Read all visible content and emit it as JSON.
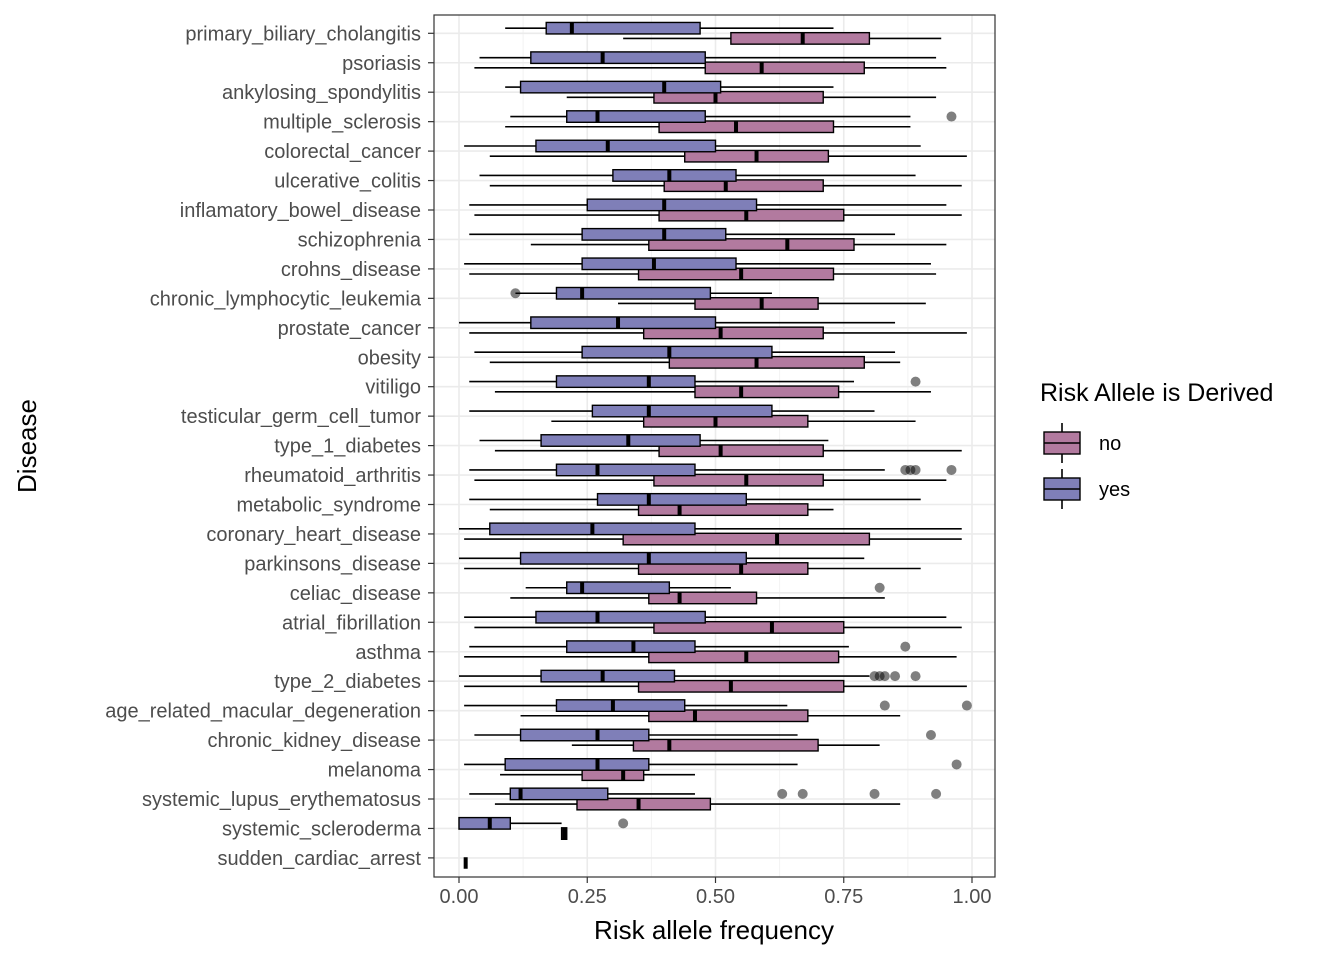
{
  "chart_data": {
    "type": "boxplot",
    "orientation": "horizontal",
    "xlabel": "Risk allele frequency",
    "ylabel": "Disease",
    "xlim": [
      -0.05,
      1.04
    ],
    "xticks": [
      0,
      0.25,
      0.5,
      0.75,
      1
    ],
    "xtick_labels": [
      "0.00",
      "0.25",
      "0.50",
      "0.75",
      "1.00"
    ],
    "grid": true,
    "legend": {
      "title": "Risk Allele is Derived",
      "placement": "right",
      "entries": [
        {
          "key": "no",
          "label": "no",
          "color": "#B27A9F"
        },
        {
          "key": "yes",
          "label": "yes",
          "color": "#7F7FB8"
        }
      ]
    },
    "categories": [
      "primary_biliary_cholangitis",
      "psoriasis",
      "ankylosing_spondylitis",
      "multiple_sclerosis",
      "colorectal_cancer",
      "ulcerative_colitis",
      "inflamatory_bowel_disease",
      "schizophrenia",
      "crohns_disease",
      "chronic_lymphocytic_leukemia",
      "prostate_cancer",
      "obesity",
      "vitiligo",
      "testicular_germ_cell_tumor",
      "type_1_diabetes",
      "rheumatoid_arthritis",
      "metabolic_syndrome",
      "coronary_heart_disease",
      "parkinsons_disease",
      "celiac_disease",
      "atrial_fibrillation",
      "asthma",
      "type_2_diabetes",
      "age_related_macular_degeneration",
      "chronic_kidney_disease",
      "melanoma",
      "systemic_lupus_erythematosus",
      "systemic_scleroderma",
      "sudden_cardiac_arrest"
    ],
    "series": [
      {
        "key": "no",
        "boxes": [
          {
            "min": 0.32,
            "q1": 0.53,
            "median": 0.67,
            "q3": 0.8,
            "max": 0.94,
            "outliers": []
          },
          {
            "min": 0.03,
            "q1": 0.48,
            "median": 0.59,
            "q3": 0.79,
            "max": 0.95,
            "outliers": []
          },
          {
            "min": 0.21,
            "q1": 0.38,
            "median": 0.5,
            "q3": 0.71,
            "max": 0.93,
            "outliers": []
          },
          {
            "min": 0.09,
            "q1": 0.39,
            "median": 0.54,
            "q3": 0.73,
            "max": 0.88,
            "outliers": []
          },
          {
            "min": 0.06,
            "q1": 0.44,
            "median": 0.58,
            "q3": 0.72,
            "max": 0.99,
            "outliers": []
          },
          {
            "min": 0.06,
            "q1": 0.4,
            "median": 0.52,
            "q3": 0.71,
            "max": 0.98,
            "outliers": []
          },
          {
            "min": 0.03,
            "q1": 0.39,
            "median": 0.56,
            "q3": 0.75,
            "max": 0.98,
            "outliers": []
          },
          {
            "min": 0.14,
            "q1": 0.37,
            "median": 0.64,
            "q3": 0.77,
            "max": 0.95,
            "outliers": []
          },
          {
            "min": 0.02,
            "q1": 0.35,
            "median": 0.55,
            "q3": 0.73,
            "max": 0.93,
            "outliers": []
          },
          {
            "min": 0.31,
            "q1": 0.46,
            "median": 0.59,
            "q3": 0.7,
            "max": 0.91,
            "outliers": []
          },
          {
            "min": 0.02,
            "q1": 0.36,
            "median": 0.51,
            "q3": 0.71,
            "max": 0.99,
            "outliers": []
          },
          {
            "min": 0.06,
            "q1": 0.41,
            "median": 0.58,
            "q3": 0.79,
            "max": 0.86,
            "outliers": []
          },
          {
            "min": 0.07,
            "q1": 0.46,
            "median": 0.55,
            "q3": 0.74,
            "max": 0.92,
            "outliers": []
          },
          {
            "min": 0.18,
            "q1": 0.36,
            "median": 0.5,
            "q3": 0.68,
            "max": 0.89,
            "outliers": []
          },
          {
            "min": 0.07,
            "q1": 0.39,
            "median": 0.51,
            "q3": 0.71,
            "max": 0.98,
            "outliers": []
          },
          {
            "min": 0.03,
            "q1": 0.38,
            "median": 0.56,
            "q3": 0.71,
            "max": 0.95,
            "outliers": []
          },
          {
            "min": 0.06,
            "q1": 0.35,
            "median": 0.43,
            "q3": 0.68,
            "max": 0.73,
            "outliers": []
          },
          {
            "min": 0.01,
            "q1": 0.32,
            "median": 0.62,
            "q3": 0.8,
            "max": 0.98,
            "outliers": []
          },
          {
            "min": 0.01,
            "q1": 0.35,
            "median": 0.55,
            "q3": 0.68,
            "max": 0.9,
            "outliers": []
          },
          {
            "min": 0.1,
            "q1": 0.37,
            "median": 0.43,
            "q3": 0.58,
            "max": 0.83,
            "outliers": []
          },
          {
            "min": 0.03,
            "q1": 0.38,
            "median": 0.61,
            "q3": 0.75,
            "max": 0.98,
            "outliers": []
          },
          {
            "min": 0.01,
            "q1": 0.37,
            "median": 0.56,
            "q3": 0.74,
            "max": 0.97,
            "outliers": []
          },
          {
            "min": 0.01,
            "q1": 0.35,
            "median": 0.53,
            "q3": 0.75,
            "max": 0.99,
            "outliers": []
          },
          {
            "min": 0.12,
            "q1": 0.37,
            "median": 0.46,
            "q3": 0.68,
            "max": 0.86,
            "outliers": []
          },
          {
            "min": 0.22,
            "q1": 0.34,
            "median": 0.41,
            "q3": 0.7,
            "max": 0.82,
            "outliers": []
          },
          {
            "min": 0.08,
            "q1": 0.24,
            "median": 0.32,
            "q3": 0.36,
            "max": 0.46,
            "outliers": []
          },
          {
            "min": 0.07,
            "q1": 0.23,
            "median": 0.35,
            "q3": 0.49,
            "max": 0.86,
            "outliers": []
          },
          {
            "min": 0.2,
            "q1": 0.2,
            "median": 0.205,
            "q3": 0.21,
            "max": 0.21,
            "outliers": []
          },
          {
            "min": 0.013,
            "q1": 0.013,
            "median": 0.013,
            "q3": 0.013,
            "max": 0.013,
            "outliers": []
          }
        ]
      },
      {
        "key": "yes",
        "boxes": [
          {
            "min": 0.09,
            "q1": 0.17,
            "median": 0.22,
            "q3": 0.47,
            "max": 0.73,
            "outliers": []
          },
          {
            "min": 0.04,
            "q1": 0.14,
            "median": 0.28,
            "q3": 0.48,
            "max": 0.93,
            "outliers": []
          },
          {
            "min": 0.09,
            "q1": 0.12,
            "median": 0.4,
            "q3": 0.51,
            "max": 0.73,
            "outliers": []
          },
          {
            "min": 0.1,
            "q1": 0.21,
            "median": 0.27,
            "q3": 0.48,
            "max": 0.88,
            "outliers": [
              0.96
            ]
          },
          {
            "min": 0.01,
            "q1": 0.15,
            "median": 0.29,
            "q3": 0.5,
            "max": 0.9,
            "outliers": []
          },
          {
            "min": 0.04,
            "q1": 0.3,
            "median": 0.41,
            "q3": 0.54,
            "max": 0.89,
            "outliers": []
          },
          {
            "min": 0.02,
            "q1": 0.25,
            "median": 0.4,
            "q3": 0.58,
            "max": 0.95,
            "outliers": []
          },
          {
            "min": 0.02,
            "q1": 0.24,
            "median": 0.4,
            "q3": 0.52,
            "max": 0.85,
            "outliers": []
          },
          {
            "min": 0.01,
            "q1": 0.24,
            "median": 0.38,
            "q3": 0.54,
            "max": 0.92,
            "outliers": []
          },
          {
            "min": 0.11,
            "q1": 0.19,
            "median": 0.24,
            "q3": 0.49,
            "max": 0.61,
            "outliers": [
              0.11
            ]
          },
          {
            "min": 0.0,
            "q1": 0.14,
            "median": 0.31,
            "q3": 0.5,
            "max": 0.85,
            "outliers": []
          },
          {
            "min": 0.03,
            "q1": 0.24,
            "median": 0.41,
            "q3": 0.61,
            "max": 0.85,
            "outliers": []
          },
          {
            "min": 0.02,
            "q1": 0.19,
            "median": 0.37,
            "q3": 0.46,
            "max": 0.77,
            "outliers": [
              0.89
            ]
          },
          {
            "min": 0.02,
            "q1": 0.26,
            "median": 0.37,
            "q3": 0.61,
            "max": 0.81,
            "outliers": []
          },
          {
            "min": 0.04,
            "q1": 0.16,
            "median": 0.33,
            "q3": 0.47,
            "max": 0.72,
            "outliers": []
          },
          {
            "min": 0.02,
            "q1": 0.19,
            "median": 0.27,
            "q3": 0.46,
            "max": 0.83,
            "outliers": [
              0.87,
              0.88,
              0.89,
              0.96
            ]
          },
          {
            "min": 0.02,
            "q1": 0.27,
            "median": 0.37,
            "q3": 0.56,
            "max": 0.9,
            "outliers": []
          },
          {
            "min": 0.0,
            "q1": 0.06,
            "median": 0.26,
            "q3": 0.46,
            "max": 0.98,
            "outliers": []
          },
          {
            "min": 0.0,
            "q1": 0.12,
            "median": 0.37,
            "q3": 0.56,
            "max": 0.79,
            "outliers": []
          },
          {
            "min": 0.13,
            "q1": 0.21,
            "median": 0.24,
            "q3": 0.41,
            "max": 0.53,
            "outliers": [
              0.82
            ]
          },
          {
            "min": 0.01,
            "q1": 0.15,
            "median": 0.27,
            "q3": 0.48,
            "max": 0.95,
            "outliers": []
          },
          {
            "min": 0.02,
            "q1": 0.21,
            "median": 0.34,
            "q3": 0.46,
            "max": 0.76,
            "outliers": [
              0.87
            ]
          },
          {
            "min": 0.0,
            "q1": 0.16,
            "median": 0.28,
            "q3": 0.42,
            "max": 0.8,
            "outliers": [
              0.81,
              0.82,
              0.83,
              0.85,
              0.89
            ]
          },
          {
            "min": 0.01,
            "q1": 0.19,
            "median": 0.3,
            "q3": 0.44,
            "max": 0.64,
            "outliers": [
              0.83,
              0.99
            ]
          },
          {
            "min": 0.03,
            "q1": 0.12,
            "median": 0.27,
            "q3": 0.37,
            "max": 0.66,
            "outliers": [
              0.92
            ]
          },
          {
            "min": 0.01,
            "q1": 0.09,
            "median": 0.27,
            "q3": 0.37,
            "max": 0.66,
            "outliers": [
              0.97
            ]
          },
          {
            "min": 0.02,
            "q1": 0.1,
            "median": 0.12,
            "q3": 0.29,
            "max": 0.46,
            "outliers": [
              0.63,
              0.67,
              0.81,
              0.93
            ]
          },
          {
            "min": 0.0,
            "q1": 0.0,
            "median": 0.06,
            "q3": 0.1,
            "max": 0.2,
            "outliers": [
              0.32
            ]
          },
          null
        ]
      }
    ]
  }
}
